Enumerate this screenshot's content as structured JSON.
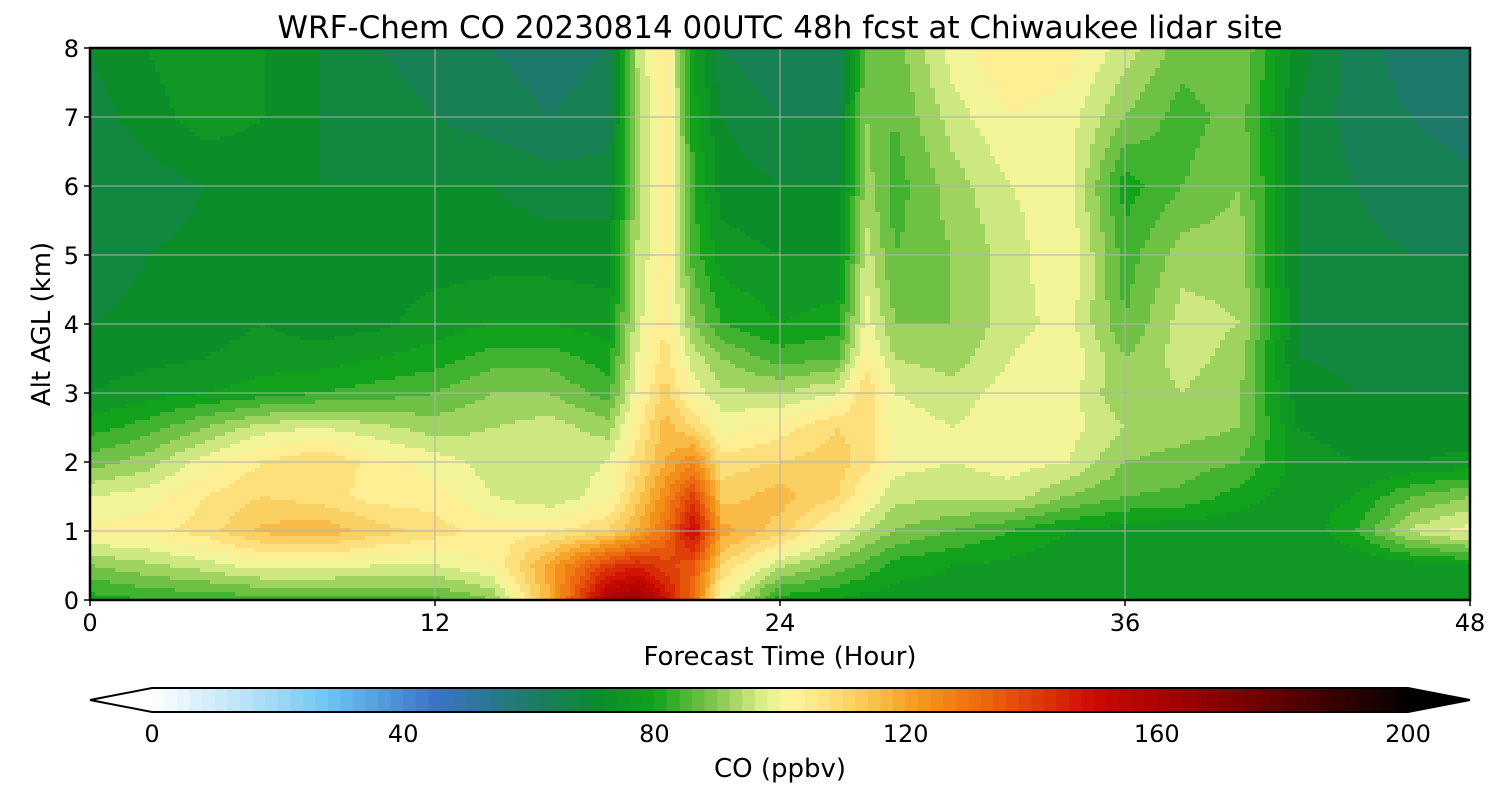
{
  "chart_data": {
    "type": "heatmap",
    "title": "WRF-Chem CO  20230814 00UTC 48h fcst at Chiwaukee lidar site",
    "xlabel": "Forecast Time (Hour)",
    "ylabel": "Alt AGL (km)",
    "xlim": [
      0,
      48
    ],
    "ylim": [
      0,
      8
    ],
    "xticks": [
      0,
      12,
      24,
      36,
      48
    ],
    "yticks": [
      0,
      1,
      2,
      3,
      4,
      5,
      6,
      7,
      8
    ],
    "grid": true,
    "x": [
      0,
      2,
      4,
      6,
      8,
      10,
      12,
      14,
      16,
      18,
      19,
      20,
      21,
      22,
      24,
      26,
      27,
      28,
      30,
      32,
      34,
      36,
      38,
      40,
      42,
      44,
      46,
      48
    ],
    "y": [
      0,
      0.5,
      1,
      1.5,
      2,
      2.5,
      3,
      3.5,
      4,
      5,
      6,
      7,
      8
    ],
    "values": [
      [
        80,
        82,
        83,
        84,
        84,
        85,
        85,
        90,
        118,
        160,
        165,
        150,
        130,
        100,
        80,
        78,
        76,
        76,
        76,
        76,
        75,
        75,
        75,
        75,
        74,
        74,
        74,
        74
      ],
      [
        90,
        93,
        96,
        100,
        100,
        98,
        98,
        102,
        120,
        140,
        145,
        140,
        135,
        110,
        95,
        88,
        85,
        80,
        78,
        77,
        75,
        75,
        75,
        75,
        74,
        74,
        76,
        78
      ],
      [
        103,
        104,
        108,
        115,
        117,
        112,
        108,
        104,
        105,
        110,
        118,
        130,
        152,
        120,
        112,
        100,
        94,
        90,
        86,
        82,
        78,
        76,
        75,
        75,
        74,
        82,
        95,
        100
      ],
      [
        98,
        100,
        106,
        110,
        108,
        104,
        104,
        98,
        95,
        100,
        112,
        125,
        140,
        112,
        116,
        110,
        102,
        95,
        95,
        96,
        90,
        86,
        85,
        80,
        76,
        78,
        86,
        90
      ],
      [
        88,
        92,
        100,
        106,
        110,
        104,
        100,
        96,
        96,
        98,
        108,
        118,
        125,
        108,
        110,
        112,
        108,
        100,
        98,
        100,
        98,
        90,
        88,
        86,
        76,
        74,
        74,
        75
      ],
      [
        80,
        84,
        90,
        96,
        98,
        95,
        92,
        94,
        96,
        92,
        104,
        116,
        110,
        100,
        104,
        110,
        108,
        100,
        98,
        100,
        100,
        94,
        92,
        90,
        74,
        72,
        72,
        72
      ],
      [
        74,
        76,
        78,
        80,
        82,
        84,
        86,
        90,
        90,
        84,
        100,
        112,
        100,
        95,
        94,
        98,
        110,
        98,
        96,
        100,
        100,
        90,
        94,
        90,
        72,
        70,
        70,
        70
      ],
      [
        72,
        73,
        74,
        76,
        76,
        78,
        80,
        84,
        84,
        80,
        98,
        108,
        96,
        90,
        84,
        86,
        104,
        94,
        92,
        98,
        102,
        90,
        96,
        92,
        70,
        69,
        68,
        68
      ],
      [
        70,
        71,
        72,
        74,
        72,
        73,
        76,
        78,
        78,
        76,
        96,
        106,
        90,
        82,
        78,
        80,
        100,
        90,
        90,
        96,
        100,
        86,
        96,
        94,
        70,
        68,
        67,
        67
      ],
      [
        68,
        70,
        71,
        72,
        72,
        72,
        72,
        72,
        72,
        72,
        94,
        104,
        84,
        76,
        74,
        74,
        96,
        86,
        90,
        96,
        102,
        84,
        92,
        92,
        70,
        67,
        66,
        66
      ],
      [
        66,
        68,
        70,
        72,
        70,
        70,
        70,
        70,
        68,
        68,
        92,
        104,
        82,
        72,
        70,
        70,
        92,
        84,
        92,
        98,
        100,
        80,
        86,
        90,
        70,
        66,
        64,
        63
      ],
      [
        68,
        72,
        76,
        74,
        70,
        68,
        66,
        64,
        62,
        64,
        92,
        105,
        80,
        70,
        66,
        66,
        90,
        86,
        96,
        102,
        100,
        90,
        84,
        88,
        70,
        64,
        62,
        60
      ],
      [
        70,
        74,
        78,
        74,
        70,
        66,
        64,
        62,
        60,
        62,
        94,
        106,
        78,
        66,
        62,
        64,
        88,
        88,
        100,
        106,
        104,
        96,
        88,
        90,
        72,
        64,
        60,
        58
      ]
    ],
    "colorbar": {
      "label": "CO  (ppbv)",
      "min": 0,
      "max": 200,
      "ticks": [
        0,
        40,
        80,
        120,
        160,
        200
      ],
      "extend": "both",
      "color_stops": [
        {
          "v": 0,
          "c": "#ffffff"
        },
        {
          "v": 20,
          "c": "#9fd8f5"
        },
        {
          "v": 28,
          "c": "#6cc4f4"
        },
        {
          "v": 45,
          "c": "#3b74c6"
        },
        {
          "v": 60,
          "c": "#1d7a6a"
        },
        {
          "v": 72,
          "c": "#0b8d2a"
        },
        {
          "v": 80,
          "c": "#13a21c"
        },
        {
          "v": 90,
          "c": "#86c94f"
        },
        {
          "v": 98,
          "c": "#e6f291"
        },
        {
          "v": 102,
          "c": "#fff5a0"
        },
        {
          "v": 112,
          "c": "#fbd062"
        },
        {
          "v": 122,
          "c": "#f59a1c"
        },
        {
          "v": 135,
          "c": "#e95a0c"
        },
        {
          "v": 150,
          "c": "#cc0a02"
        },
        {
          "v": 165,
          "c": "#9a0101"
        },
        {
          "v": 180,
          "c": "#5e0101"
        },
        {
          "v": 195,
          "c": "#1a0000"
        },
        {
          "v": 200,
          "c": "#000000"
        }
      ]
    }
  }
}
